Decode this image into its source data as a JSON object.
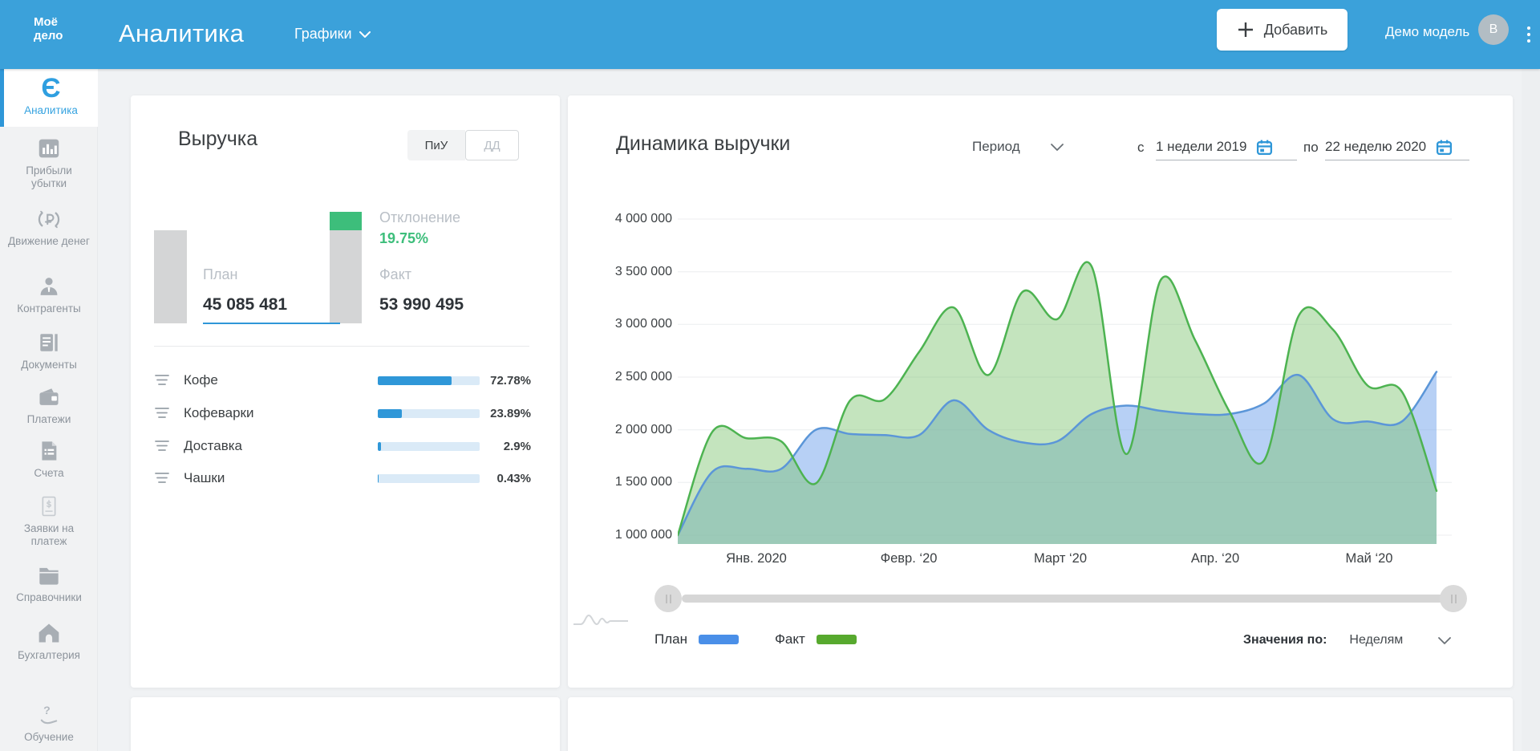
{
  "topbar": {
    "logo_line1": "Моё",
    "logo_line2": "дело",
    "title": "Аналитика",
    "nav_label": "Графики",
    "add_label": "Добавить",
    "account_label": "Демо модель",
    "avatar_initial": "B"
  },
  "sidebar": {
    "items": [
      {
        "label": "Аналитика",
        "icon": "analytics-logo-icon",
        "active": true
      },
      {
        "label": "Прибыли убытки",
        "icon": "profit-loss-icon"
      },
      {
        "label": "Движение денег",
        "icon": "money-flow-icon"
      },
      {
        "label": "Контрагенты",
        "icon": "counterparties-icon"
      },
      {
        "label": "Документы",
        "icon": "documents-icon"
      },
      {
        "label": "Платежи",
        "icon": "payments-icon"
      },
      {
        "label": "Счета",
        "icon": "invoices-icon"
      },
      {
        "label": "Заявки на платеж",
        "icon": "payment-request-icon"
      },
      {
        "label": "Справочники",
        "icon": "directories-icon"
      },
      {
        "label": "Бухгалтерия",
        "icon": "accounting-icon"
      },
      {
        "label": "Обучение",
        "icon": "training-icon"
      }
    ]
  },
  "revenue_card": {
    "title": "Выручка",
    "toggle": [
      "ПиУ",
      "ДД"
    ],
    "plan_label": "План",
    "plan_value": "45 085 481",
    "plan_num": 45085481,
    "fact_label": "Факт",
    "fact_value": "53 990 495",
    "fact_num": 53990495,
    "deviation_label": "Отклонение",
    "deviation_value": "19.75%",
    "categories": [
      {
        "name": "Кофе",
        "percent": "72.78%",
        "pct": 72.78
      },
      {
        "name": "Кофеварки",
        "percent": "23.89%",
        "pct": 23.89
      },
      {
        "name": "Доставка",
        "percent": "2.9%",
        "pct": 2.9
      },
      {
        "name": "Чашки",
        "percent": "0.43%",
        "pct": 0.43
      }
    ]
  },
  "dynamics_card": {
    "title": "Динамика выручки",
    "period_label": "Период",
    "from_label": "с",
    "from_value": "1 недели 2019",
    "to_label": "по",
    "to_value": "22 неделю 2020",
    "legend": [
      {
        "name": "План",
        "color": "#4a8fe8"
      },
      {
        "name": "Факт",
        "color": "#57a92e"
      }
    ],
    "values_by_label": "Значения по:",
    "values_by_value": "Неделям"
  },
  "colors": {
    "topbar_blue": "#3ba1da",
    "accent_blue": "#2f97d8",
    "green_accent": "#3dbe7b"
  },
  "chart_data": {
    "type": "area",
    "title": "Динамика выручки",
    "x_unit": "weeks",
    "x_labels": [
      "Янв. 2020",
      "Февр. ‘20",
      "Март ‘20",
      "Апр. ‘20",
      "Май ‘20"
    ],
    "y_ticks": [
      "4 000 000",
      "3 500 000",
      "3 000 000",
      "2 500 000",
      "2 000 000",
      "1 500 000",
      "1 000 000"
    ],
    "ylim": [
      1000000,
      4000000
    ],
    "grid": "horizontal",
    "legend_position": "bottom-left",
    "series": [
      {
        "name": "План",
        "color": "#5b96d8",
        "fill": "rgba(105,156,235,0.48)",
        "values": [
          1000000,
          1600000,
          1630000,
          1630000,
          2000000,
          1960000,
          1950000,
          1950000,
          2280000,
          2000000,
          1880000,
          1890000,
          2150000,
          2230000,
          2180000,
          2150000,
          2150000,
          2250000,
          2520000,
          2100000,
          2080000,
          2080000,
          2550000
        ]
      },
      {
        "name": "Факт",
        "color": "#4db351",
        "fill": "rgba(125,196,110,0.45)",
        "values": [
          1000000,
          1980000,
          1920000,
          1890000,
          1490000,
          2280000,
          2290000,
          2740000,
          3160000,
          2520000,
          3310000,
          3050000,
          3550000,
          1770000,
          3420000,
          2850000,
          2170000,
          1710000,
          3080000,
          2950000,
          2420000,
          2360000,
          1420000
        ]
      }
    ]
  }
}
